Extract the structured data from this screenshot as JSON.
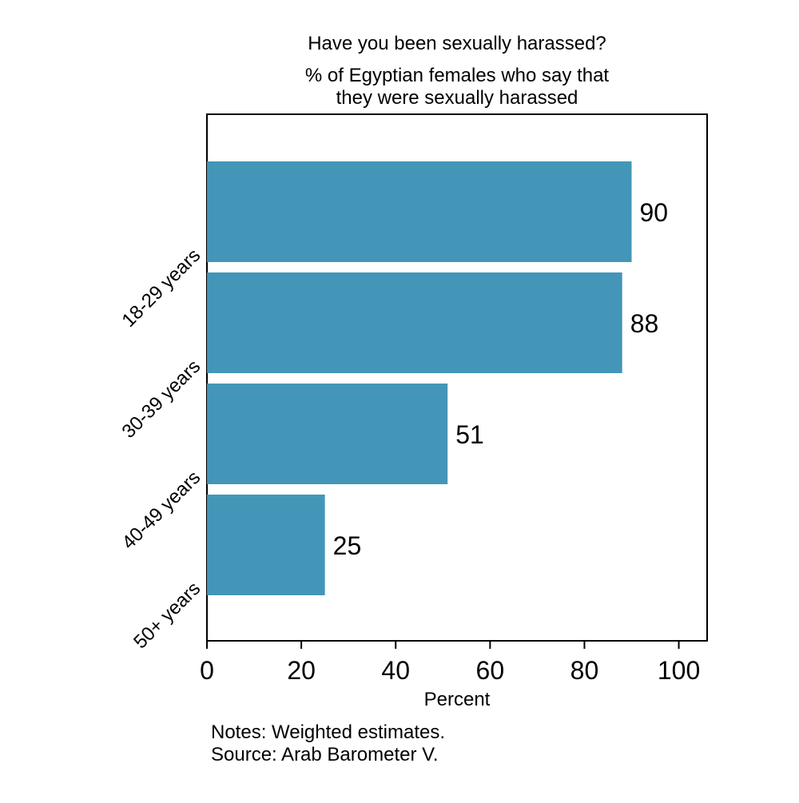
{
  "chart_data": {
    "type": "bar",
    "orientation": "horizontal",
    "title": "Have you been sexually harassed?",
    "subtitle_lines": [
      "% of Egyptian females who say that",
      "they were sexually harassed"
    ],
    "categories": [
      "18-29 years",
      "30-39 years",
      "40-49 years",
      "50+ years"
    ],
    "values": [
      90,
      88,
      51,
      25
    ],
    "data_labels": [
      "90",
      "88",
      "51",
      "25"
    ],
    "xlabel": "Percent",
    "ylabel": "",
    "xlim": [
      0,
      106
    ],
    "x_ticks": [
      0,
      20,
      40,
      60,
      80,
      100
    ],
    "x_tick_labels": [
      "0",
      "20",
      "40",
      "60",
      "80",
      "100"
    ],
    "grid": false,
    "bar_color": "#4396b8",
    "notes_lines": [
      "Notes: Weighted estimates.",
      "Source: Arab Barometer V."
    ]
  }
}
